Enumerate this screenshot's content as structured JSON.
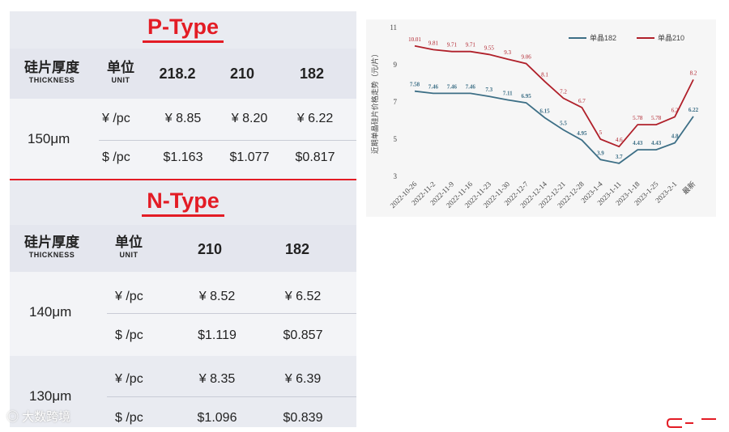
{
  "p_type": {
    "title": "P-Type",
    "header": {
      "thickness_cn": "硅片厚度",
      "thickness_en": "THICKNESS",
      "unit_cn": "单位",
      "unit_en": "UNIT",
      "sizes": [
        "218.2",
        "210",
        "182"
      ]
    },
    "rows": [
      {
        "thickness": "150μm",
        "unit": "¥ /pc",
        "values": [
          "¥ 8.85",
          "¥ 8.20",
          "¥ 6.22"
        ]
      },
      {
        "thickness": "",
        "unit": "$ /pc",
        "values": [
          "$1.163",
          "$1.077",
          "$0.817"
        ]
      }
    ]
  },
  "n_type": {
    "title": "N-Type",
    "header": {
      "thickness_cn": "硅片厚度",
      "thickness_en": "THICKNESS",
      "unit_cn": "单位",
      "unit_en": "UNIT",
      "sizes": [
        "210",
        "182"
      ]
    },
    "rows": [
      {
        "thickness": "140μm",
        "unit": "¥ /pc",
        "values": [
          "¥ 8.52",
          "¥ 6.52"
        ]
      },
      {
        "thickness": "",
        "unit": "$ /pc",
        "values": [
          "$1.119",
          "$0.857"
        ]
      },
      {
        "thickness": "130μm",
        "unit": "¥ /pc",
        "values": [
          "¥ 8.35",
          "¥ 6.39"
        ]
      },
      {
        "thickness": "",
        "unit": "$ /pc",
        "values": [
          "$1.096",
          "$0.839"
        ]
      }
    ]
  },
  "watermark": "大数跨境",
  "colors": {
    "accent_red": "#e31c25",
    "series_182": "#3d6f86",
    "series_210": "#b0202a"
  },
  "chart_data": {
    "type": "line",
    "ylabel": "近期单晶硅片价格走势（元/片）",
    "ylim": [
      3,
      11
    ],
    "yticks": [
      3,
      5,
      7,
      9,
      11
    ],
    "legend_position": "top-right",
    "grid": false,
    "x": [
      "2022-10-26",
      "2022-11-2",
      "2022-11-9",
      "2022-11-16",
      "2022-11-23",
      "2022-11-30",
      "2022-12-7",
      "2022-12-14",
      "2022-12-21",
      "2022-12-28",
      "2023-1-4",
      "2023-1-11",
      "2023-1-18",
      "2023-1-25",
      "2023-2-1",
      "最新"
    ],
    "series": [
      {
        "name": "单晶182",
        "color": "#3d6f86",
        "values": [
          7.58,
          7.46,
          7.46,
          7.46,
          7.3,
          7.11,
          6.95,
          6.15,
          5.5,
          4.95,
          3.9,
          3.7,
          4.43,
          4.43,
          4.8,
          6.22
        ],
        "labels": [
          "7.58",
          "7.46",
          "7.46",
          "7.46",
          "7.3",
          "7.11",
          "6.95",
          "6.15",
          "5.5",
          "4.95",
          "3.9",
          "3.7",
          "4.43",
          "4.43",
          "4.8",
          "6.22"
        ]
      },
      {
        "name": "单晶210",
        "color": "#b0202a",
        "values": [
          10.01,
          9.81,
          9.71,
          9.71,
          9.55,
          9.3,
          9.06,
          8.1,
          7.2,
          6.7,
          5,
          4.6,
          5.78,
          5.78,
          6.2,
          8.2
        ],
        "labels": [
          "10.01",
          "9.81",
          "9.71",
          "9.71",
          "9.55",
          "9.3",
          "9.06",
          "8.1",
          "7.2",
          "6.7",
          "5",
          "4.6",
          "5.78",
          "5.78",
          "6.2",
          "8.2"
        ]
      }
    ]
  }
}
